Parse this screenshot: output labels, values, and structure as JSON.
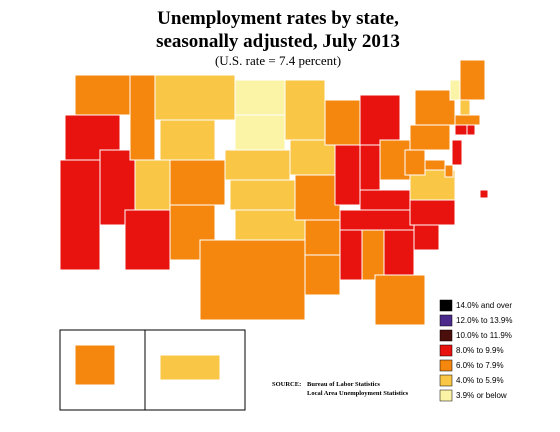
{
  "header": {
    "title_lines": [
      "Unemployment rates by state,",
      "seasonally adjusted, July 2013"
    ],
    "subtitle": "(U.S. rate = 7.4 percent)"
  },
  "legend": [
    {
      "label": "14.0% and over",
      "color": "#000000"
    },
    {
      "label": "12.0% to 13.9%",
      "color": "#4b2a8c"
    },
    {
      "label": "10.0% to 11.9%",
      "color": "#4a0f0a"
    },
    {
      "label": "8.0% to 9.9%",
      "color": "#e8120f"
    },
    {
      "label": "6.0% to 7.9%",
      "color": "#f5870f"
    },
    {
      "label": "4.0% to 5.9%",
      "color": "#f9c646"
    },
    {
      "label": "3.9% or below",
      "color": "#fbf3a6"
    }
  ],
  "source": {
    "label": "SOURCE:",
    "lines": [
      "Bureau of Labor Statistics",
      "Local Area Unemployment Statistics"
    ]
  }
}
